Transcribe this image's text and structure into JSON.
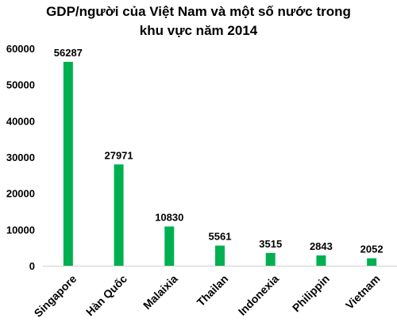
{
  "chart_data": {
    "type": "bar",
    "title_line1": "GDP/người của Việt Nam và một số nước trong",
    "title_line2": "khu vực năm 2014",
    "categories": [
      "Singapore",
      "Hàn Quốc",
      "Malaixia",
      "Thailan",
      "Indonexia",
      "Philippin",
      "Vietnam"
    ],
    "values": [
      56287,
      27971,
      10830,
      5561,
      3515,
      2843,
      2052
    ],
    "xlabel": "",
    "ylabel": "",
    "ylim": [
      0,
      60000
    ],
    "yticks": [
      0,
      10000,
      20000,
      30000,
      40000,
      50000,
      60000
    ],
    "grid": false,
    "legend": "none",
    "bar_color": "#00b050",
    "data_labels": true
  }
}
